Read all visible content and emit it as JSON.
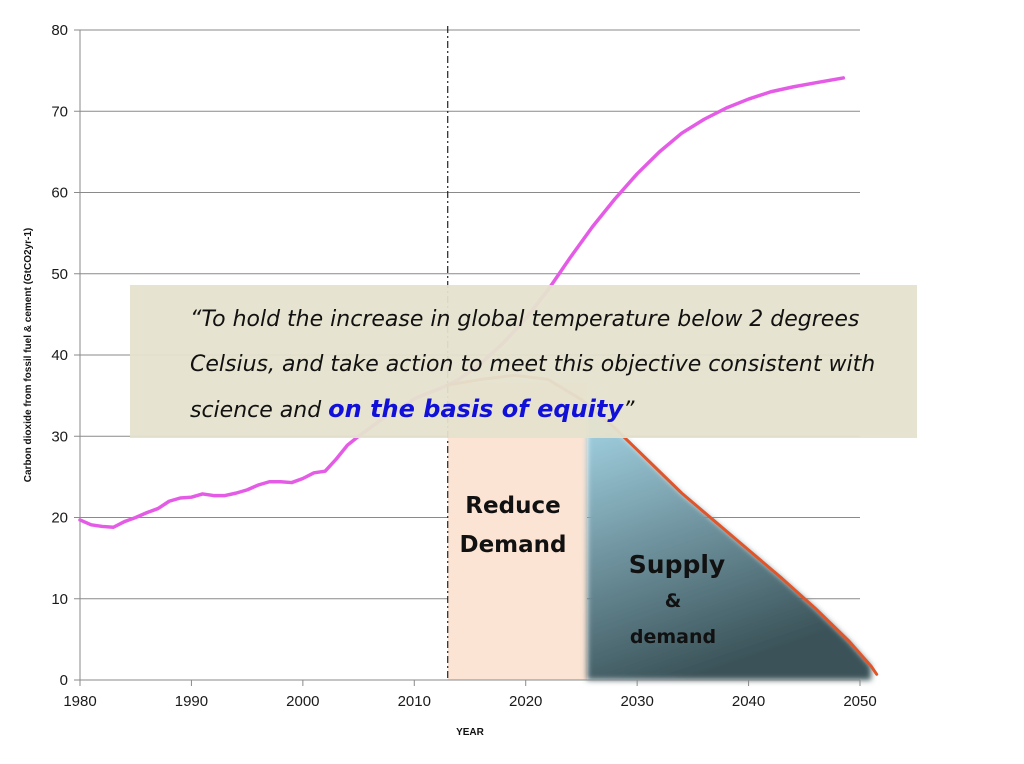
{
  "chart_data": {
    "type": "line",
    "title": "",
    "xlabel": "YEAR",
    "ylabel": "Carbon dioxide from fossil fuel & cement (GtCO2yr-1)",
    "xlim": [
      1980,
      2050
    ],
    "ylim": [
      0,
      80
    ],
    "x_ticks": [
      1980,
      1990,
      2000,
      2010,
      2020,
      2030,
      2040,
      2050
    ],
    "y_ticks": [
      0,
      10,
      20,
      30,
      40,
      50,
      60,
      70,
      80
    ],
    "grid": true,
    "vertical_marker_year": 2013,
    "series": [
      {
        "style": "magenta",
        "color": "#e45ce6",
        "points": [
          [
            1980,
            19.7
          ],
          [
            1981,
            19.1
          ],
          [
            1982,
            18.9
          ],
          [
            1983,
            18.8
          ],
          [
            1984,
            19.5
          ],
          [
            1985,
            20.0
          ],
          [
            1986,
            20.6
          ],
          [
            1987,
            21.1
          ],
          [
            1988,
            22.0
          ],
          [
            1989,
            22.4
          ],
          [
            1990,
            22.5
          ],
          [
            1991,
            22.9
          ],
          [
            1992,
            22.7
          ],
          [
            1993,
            22.7
          ],
          [
            1994,
            23.0
          ],
          [
            1995,
            23.4
          ],
          [
            1996,
            24.0
          ],
          [
            1997,
            24.4
          ],
          [
            1998,
            24.4
          ],
          [
            1999,
            24.3
          ],
          [
            2000,
            24.8
          ],
          [
            2001,
            25.5
          ],
          [
            2002,
            25.7
          ],
          [
            2003,
            27.2
          ],
          [
            2004,
            28.9
          ],
          [
            2005,
            30.0
          ],
          [
            2006,
            31.0
          ],
          [
            2007,
            32.0
          ],
          [
            2008,
            32.9
          ],
          [
            2009,
            33.7
          ],
          [
            2010,
            34.6
          ],
          [
            2011,
            35.2
          ],
          [
            2012,
            35.7
          ],
          [
            2013,
            36.3
          ],
          [
            2014,
            37.0
          ],
          [
            2016,
            39.0
          ],
          [
            2018,
            41.5
          ],
          [
            2020,
            44.5
          ],
          [
            2022,
            48.0
          ],
          [
            2024,
            52.0
          ],
          [
            2026,
            55.8
          ],
          [
            2028,
            59.2
          ],
          [
            2030,
            62.3
          ],
          [
            2032,
            65.0
          ],
          [
            2034,
            67.3
          ],
          [
            2036,
            69.0
          ],
          [
            2038,
            70.4
          ],
          [
            2040,
            71.5
          ],
          [
            2042,
            72.4
          ],
          [
            2044,
            73.0
          ],
          [
            2046,
            73.5
          ],
          [
            2048.5,
            74.1
          ]
        ]
      },
      {
        "style": "orange-red",
        "color": "#e0552a",
        "points": [
          [
            2013,
            36.3
          ],
          [
            2016,
            37.0
          ],
          [
            2019,
            37.5
          ],
          [
            2022,
            37.0
          ],
          [
            2025,
            34.5
          ],
          [
            2028,
            31.0
          ],
          [
            2031,
            27.0
          ],
          [
            2034,
            23.0
          ],
          [
            2037,
            19.5
          ],
          [
            2040,
            16.0
          ],
          [
            2043,
            12.5
          ],
          [
            2046,
            8.8
          ],
          [
            2049,
            4.8
          ],
          [
            2051,
            1.7
          ],
          [
            2051.5,
            0.7
          ]
        ]
      }
    ],
    "regions": [
      {
        "name": "reduce-demand",
        "label_lines": [
          "Reduce",
          "Demand"
        ],
        "x_start": 2013,
        "x_end": 2025.5,
        "color": "#fce4d4"
      },
      {
        "name": "supply-demand",
        "label_lines": [
          "Supply",
          "&",
          "demand"
        ],
        "x_start": 2025.5,
        "x_end": 2051,
        "gradient_top": "#a8d9ea",
        "gradient_bottom": "#3a5258"
      }
    ]
  },
  "quote": {
    "line1": "“To hold the increase in global temperature below 2 degrees",
    "line2": "Celsius, and take action to meet this objective consistent with",
    "line3_plain": "science and ",
    "line3_emphasis": "on the basis of equity",
    "line3_end": "”",
    "emphasis_color": "#1010d8"
  }
}
